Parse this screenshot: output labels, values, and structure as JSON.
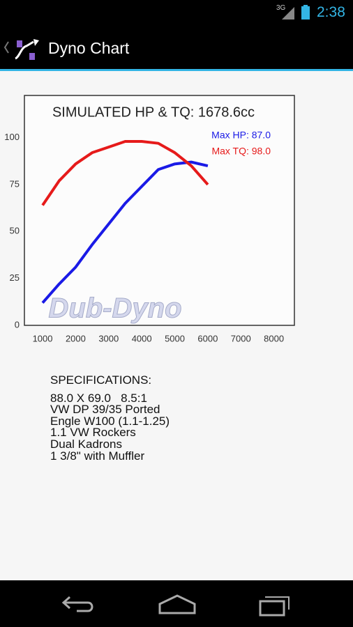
{
  "status_bar": {
    "network": "3G",
    "time": "2:38"
  },
  "action_bar": {
    "title": "Dyno Chart"
  },
  "chart_data": {
    "type": "line",
    "title": "SIMULATED HP & TQ: 1678.6cc",
    "watermark": "Dub-Dyno",
    "x": [
      1000,
      1500,
      2000,
      2500,
      3000,
      3500,
      4000,
      4500,
      5000,
      5500,
      6000
    ],
    "series": [
      {
        "name": "Max HP: 87.0",
        "color": "#1a1ae6",
        "values": [
          12,
          22,
          31,
          43,
          54,
          65,
          74,
          83,
          86,
          87,
          85
        ]
      },
      {
        "name": "Max TQ: 98.0",
        "color": "#e61a1a",
        "values": [
          64,
          77,
          86,
          92,
          95,
          98,
          98,
          97,
          92,
          85,
          75
        ]
      }
    ],
    "xlim": [
      450,
      8620
    ],
    "ylim": [
      0,
      122.5
    ],
    "xticks": [
      1000,
      2000,
      3000,
      4000,
      5000,
      6000,
      7000,
      8000
    ],
    "yticks": [
      0,
      25,
      50,
      75,
      100
    ],
    "grid": false
  },
  "specifications": {
    "heading": "SPECIFICATIONS:",
    "lines": [
      "88.0 X 69.0   8.5:1",
      "VW DP 39/35 Ported",
      "Engle W100 (1.1-1.25)",
      "1.1 VW Rockers",
      "Dual Kadrons",
      "1 3/8\" with Muffler"
    ]
  }
}
